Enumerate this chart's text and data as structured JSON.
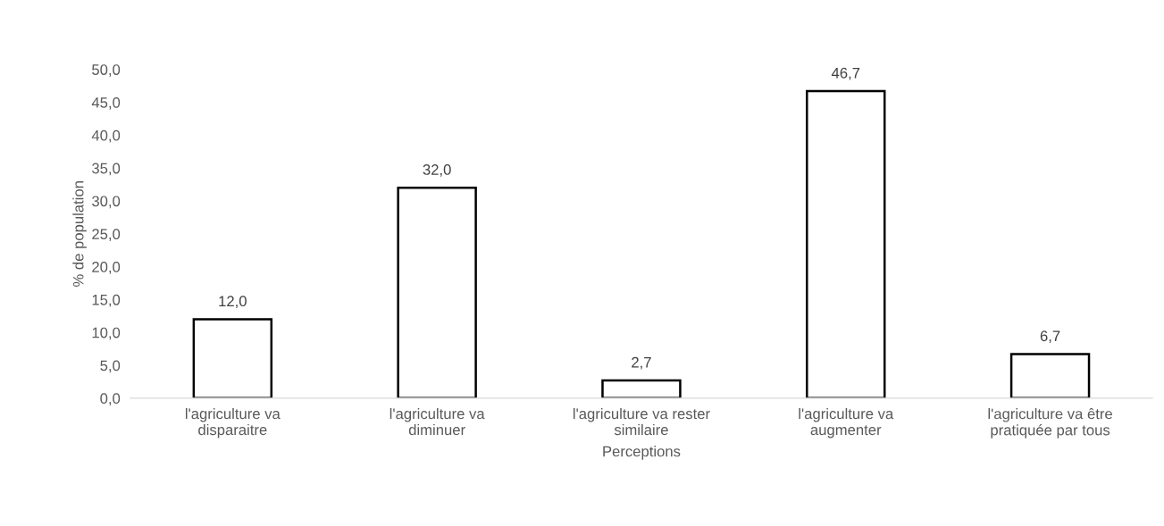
{
  "chart_data": {
    "type": "bar",
    "xlabel": "Perceptions",
    "ylabel": "% de population",
    "categories": [
      "l'agriculture va\ndisparaitre",
      "l'agriculture va\ndiminuer",
      "l'agriculture va rester\nsimilaire",
      "l'agriculture va\naugmenter",
      "l'agriculture va être\npratiquée par tous"
    ],
    "values": [
      12.0,
      32.0,
      2.7,
      46.7,
      6.7
    ],
    "value_labels": [
      "12,0",
      "32,0",
      "2,7",
      "46,7",
      "6,7"
    ],
    "color": "#ffffff",
    "ylim": [
      0,
      50
    ],
    "yticks": [
      {
        "value": 0,
        "label": "0,0"
      },
      {
        "value": 5,
        "label": "5,0"
      },
      {
        "value": 10,
        "label": "10,0"
      },
      {
        "value": 15,
        "label": "15,0"
      },
      {
        "value": 20,
        "label": "20,0"
      },
      {
        "value": 25,
        "label": "25,0"
      },
      {
        "value": 30,
        "label": "30,0"
      },
      {
        "value": 35,
        "label": "35,0"
      },
      {
        "value": 40,
        "label": "40,0"
      },
      {
        "value": 45,
        "label": "45,0"
      },
      {
        "value": 50,
        "label": "50,0"
      }
    ],
    "grid": false,
    "legend": false
  }
}
